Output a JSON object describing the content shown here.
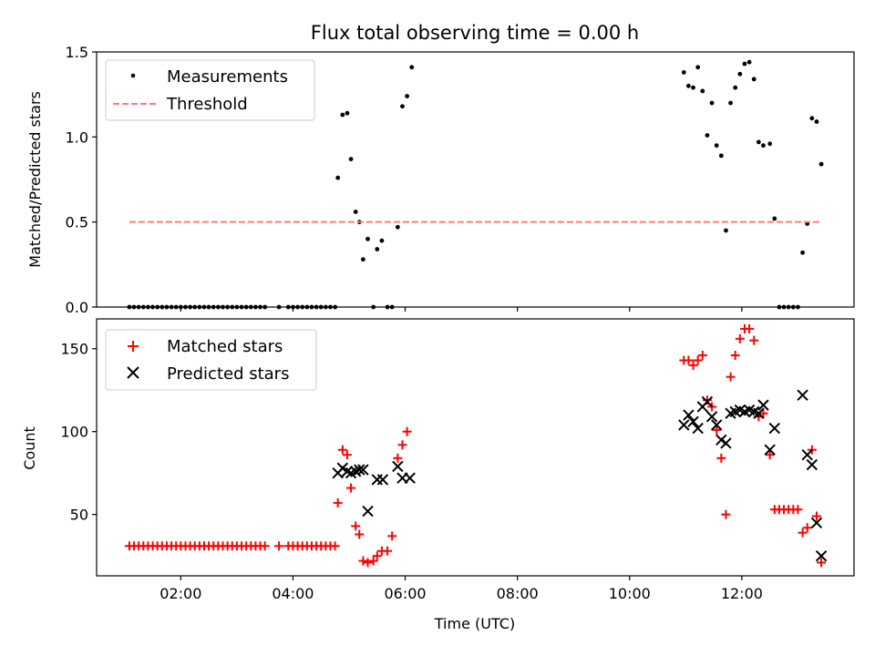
{
  "chart_data": [
    {
      "type": "scatter",
      "title": "Flux total observing time = 0.00 h",
      "xlabel": "",
      "ylabel": "Matched/Predicted stars",
      "xlim": [
        "00:30",
        "14:00"
      ],
      "ylim": [
        0,
        1.5
      ],
      "yticks": [
        "0.0",
        "0.5",
        "1.0",
        "1.5"
      ],
      "grid": false,
      "legend": {
        "position": "upper-left",
        "entries": [
          "Measurements",
          "Threshold"
        ]
      },
      "series": [
        {
          "name": "Measurements",
          "marker": "dot",
          "color": "#000000",
          "points": [
            [
              "01:05",
              0
            ],
            [
              "01:10",
              0
            ],
            [
              "01:15",
              0
            ],
            [
              "01:20",
              0
            ],
            [
              "01:25",
              0
            ],
            [
              "01:30",
              0
            ],
            [
              "01:35",
              0
            ],
            [
              "01:40",
              0
            ],
            [
              "01:45",
              0
            ],
            [
              "01:50",
              0
            ],
            [
              "01:55",
              0
            ],
            [
              "02:00",
              0
            ],
            [
              "02:05",
              0
            ],
            [
              "02:10",
              0
            ],
            [
              "02:15",
              0
            ],
            [
              "02:20",
              0
            ],
            [
              "02:25",
              0
            ],
            [
              "02:30",
              0
            ],
            [
              "02:35",
              0
            ],
            [
              "02:40",
              0
            ],
            [
              "02:45",
              0
            ],
            [
              "02:50",
              0
            ],
            [
              "02:55",
              0
            ],
            [
              "03:00",
              0
            ],
            [
              "03:05",
              0
            ],
            [
              "03:10",
              0
            ],
            [
              "03:15",
              0
            ],
            [
              "03:20",
              0
            ],
            [
              "03:25",
              0
            ],
            [
              "03:30",
              0
            ],
            [
              "03:45",
              0
            ],
            [
              "03:55",
              0
            ],
            [
              "04:00",
              0
            ],
            [
              "04:05",
              0
            ],
            [
              "04:10",
              0
            ],
            [
              "04:15",
              0
            ],
            [
              "04:20",
              0
            ],
            [
              "04:25",
              0
            ],
            [
              "04:30",
              0
            ],
            [
              "04:35",
              0
            ],
            [
              "04:40",
              0
            ],
            [
              "04:45",
              0
            ],
            [
              "04:48",
              0.76
            ],
            [
              "04:53",
              1.13
            ],
            [
              "04:58",
              1.14
            ],
            [
              "05:02",
              0.87
            ],
            [
              "05:07",
              0.56
            ],
            [
              "05:11",
              0.5
            ],
            [
              "05:15",
              0.28
            ],
            [
              "05:20",
              0.4
            ],
            [
              "05:26",
              0
            ],
            [
              "05:30",
              0.34
            ],
            [
              "05:35",
              0.39
            ],
            [
              "05:41",
              0
            ],
            [
              "05:46",
              0
            ],
            [
              "05:52",
              0.47
            ],
            [
              "05:57",
              1.18
            ],
            [
              "06:02",
              1.24
            ],
            [
              "06:07",
              1.41
            ],
            [
              "10:58",
              1.38
            ],
            [
              "11:03",
              1.3
            ],
            [
              "11:08",
              1.29
            ],
            [
              "11:13",
              1.41
            ],
            [
              "11:18",
              1.27
            ],
            [
              "11:23",
              1.01
            ],
            [
              "11:28",
              1.2
            ],
            [
              "11:33",
              0.95
            ],
            [
              "11:38",
              0.89
            ],
            [
              "11:43",
              0.45
            ],
            [
              "11:48",
              1.2
            ],
            [
              "11:53",
              1.29
            ],
            [
              "11:58",
              1.37
            ],
            [
              "12:03",
              1.43
            ],
            [
              "12:08",
              1.44
            ],
            [
              "12:13",
              1.34
            ],
            [
              "12:18",
              0.97
            ],
            [
              "12:23",
              0.95
            ],
            [
              "12:30",
              0.96
            ],
            [
              "12:35",
              0.52
            ],
            [
              "12:40",
              0
            ],
            [
              "12:45",
              0
            ],
            [
              "12:50",
              0
            ],
            [
              "12:55",
              0
            ],
            [
              "13:00",
              0
            ],
            [
              "13:05",
              0.32
            ],
            [
              "13:10",
              0.49
            ],
            [
              "13:15",
              1.11
            ],
            [
              "13:20",
              1.09
            ],
            [
              "13:25",
              0.84
            ]
          ]
        },
        {
          "name": "Threshold",
          "type": "line",
          "style": "dashed",
          "color": "#ff7b7b",
          "points": [
            [
              "01:05",
              0.5
            ],
            [
              "13:25",
              0.5
            ]
          ]
        }
      ]
    },
    {
      "type": "scatter",
      "title": "",
      "xlabel": "Time (UTC)",
      "ylabel": "Count",
      "xlim": [
        "00:30",
        "14:00"
      ],
      "ylim": [
        13,
        168
      ],
      "yticks": [
        "50",
        "100",
        "150"
      ],
      "xticks": [
        "02:00",
        "04:00",
        "06:00",
        "08:00",
        "10:00",
        "12:00"
      ],
      "grid": false,
      "legend": {
        "position": "upper-left",
        "entries": [
          "Matched stars",
          "Predicted stars"
        ]
      },
      "series": [
        {
          "name": "Matched stars",
          "marker": "plus",
          "color": "#ff0000",
          "points": [
            [
              "01:05",
              31
            ],
            [
              "01:10",
              31
            ],
            [
              "01:15",
              31
            ],
            [
              "01:20",
              31
            ],
            [
              "01:25",
              31
            ],
            [
              "01:30",
              31
            ],
            [
              "01:35",
              31
            ],
            [
              "01:40",
              31
            ],
            [
              "01:45",
              31
            ],
            [
              "01:50",
              31
            ],
            [
              "01:55",
              31
            ],
            [
              "02:00",
              31
            ],
            [
              "02:05",
              31
            ],
            [
              "02:10",
              31
            ],
            [
              "02:15",
              31
            ],
            [
              "02:20",
              31
            ],
            [
              "02:25",
              31
            ],
            [
              "02:30",
              31
            ],
            [
              "02:35",
              31
            ],
            [
              "02:40",
              31
            ],
            [
              "02:45",
              31
            ],
            [
              "02:50",
              31
            ],
            [
              "02:55",
              31
            ],
            [
              "03:00",
              31
            ],
            [
              "03:05",
              31
            ],
            [
              "03:10",
              31
            ],
            [
              "03:15",
              31
            ],
            [
              "03:20",
              31
            ],
            [
              "03:25",
              31
            ],
            [
              "03:30",
              31
            ],
            [
              "03:45",
              31
            ],
            [
              "03:55",
              31
            ],
            [
              "04:00",
              31
            ],
            [
              "04:05",
              31
            ],
            [
              "04:10",
              31
            ],
            [
              "04:15",
              31
            ],
            [
              "04:20",
              31
            ],
            [
              "04:25",
              31
            ],
            [
              "04:30",
              31
            ],
            [
              "04:35",
              31
            ],
            [
              "04:40",
              31
            ],
            [
              "04:45",
              31
            ],
            [
              "04:48",
              57
            ],
            [
              "04:53",
              89
            ],
            [
              "04:58",
              86
            ],
            [
              "05:02",
              66
            ],
            [
              "05:07",
              43
            ],
            [
              "05:11",
              38
            ],
            [
              "05:15",
              22
            ],
            [
              "05:20",
              21
            ],
            [
              "05:26",
              22
            ],
            [
              "05:30",
              25
            ],
            [
              "05:35",
              28
            ],
            [
              "05:41",
              28
            ],
            [
              "05:46",
              37
            ],
            [
              "05:52",
              84
            ],
            [
              "05:57",
              92
            ],
            [
              "06:02",
              100
            ],
            [
              "10:58",
              143
            ],
            [
              "11:03",
              143
            ],
            [
              "11:08",
              140
            ],
            [
              "11:13",
              143
            ],
            [
              "11:18",
              146
            ],
            [
              "11:23",
              119
            ],
            [
              "11:28",
              115
            ],
            [
              "11:33",
              101
            ],
            [
              "11:38",
              84
            ],
            [
              "11:43",
              50
            ],
            [
              "11:48",
              133
            ],
            [
              "11:53",
              146
            ],
            [
              "11:58",
              156
            ],
            [
              "12:03",
              162
            ],
            [
              "12:08",
              162
            ],
            [
              "12:13",
              155
            ],
            [
              "12:18",
              109
            ],
            [
              "12:23",
              111
            ],
            [
              "12:30",
              86
            ],
            [
              "12:35",
              53
            ],
            [
              "12:40",
              53
            ],
            [
              "12:45",
              53
            ],
            [
              "12:50",
              53
            ],
            [
              "12:55",
              53
            ],
            [
              "13:00",
              53
            ],
            [
              "13:05",
              39
            ],
            [
              "13:10",
              42
            ],
            [
              "13:15",
              89
            ],
            [
              "13:20",
              49
            ],
            [
              "13:25",
              21
            ]
          ]
        },
        {
          "name": "Predicted stars",
          "marker": "x",
          "color": "#000000",
          "points": [
            [
              "04:48",
              75
            ],
            [
              "04:53",
              78
            ],
            [
              "04:58",
              76
            ],
            [
              "05:02",
              75
            ],
            [
              "05:07",
              76
            ],
            [
              "05:11",
              77
            ],
            [
              "05:15",
              77
            ],
            [
              "05:20",
              52
            ],
            [
              "05:30",
              71
            ],
            [
              "05:36",
              71
            ],
            [
              "05:52",
              79
            ],
            [
              "05:57",
              72
            ],
            [
              "06:05",
              72
            ],
            [
              "10:58",
              104
            ],
            [
              "11:03",
              110
            ],
            [
              "11:08",
              106
            ],
            [
              "11:13",
              102
            ],
            [
              "11:18",
              115
            ],
            [
              "11:23",
              118
            ],
            [
              "11:28",
              109
            ],
            [
              "11:33",
              104
            ],
            [
              "11:38",
              95
            ],
            [
              "11:43",
              93
            ],
            [
              "11:48",
              111
            ],
            [
              "11:53",
              112
            ],
            [
              "11:58",
              113
            ],
            [
              "12:03",
              112
            ],
            [
              "12:08",
              113
            ],
            [
              "12:13",
              112
            ],
            [
              "12:18",
              111
            ],
            [
              "12:23",
              116
            ],
            [
              "12:30",
              89
            ],
            [
              "12:35",
              102
            ],
            [
              "13:05",
              122
            ],
            [
              "13:10",
              86
            ],
            [
              "13:15",
              80
            ],
            [
              "13:20",
              45
            ],
            [
              "13:25",
              25
            ]
          ]
        }
      ]
    }
  ]
}
